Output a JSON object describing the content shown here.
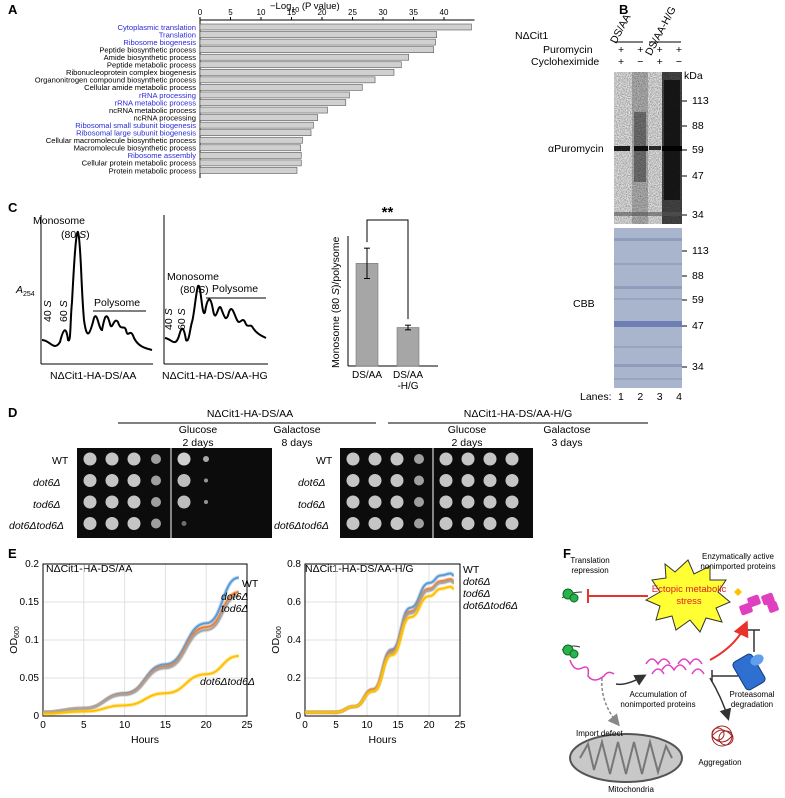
{
  "panels": {
    "A": "A",
    "B": "B",
    "C": "C",
    "D": "D",
    "E": "E",
    "F": "F"
  },
  "panelA": {
    "xlabel": "−Log",
    "xlabel_sub": "10",
    "xlabel_tail": " (P value)",
    "ticks": [
      "0",
      "5",
      "10",
      "15",
      "20",
      "25",
      "30",
      "35",
      "40"
    ],
    "colors": {
      "blue": "#2b2bd6",
      "black": "#000000",
      "bar": "#d0d0d0"
    },
    "terms": [
      {
        "name": "Cytoplasmic translation",
        "value": 44.5,
        "blue": true
      },
      {
        "name": "Translation",
        "value": 38.8,
        "blue": true
      },
      {
        "name": "Ribosome biogenesis",
        "value": 38.6,
        "blue": true
      },
      {
        "name": "Peptide biosynthetic process",
        "value": 38.3,
        "blue": false
      },
      {
        "name": "Amide biosynthetic process",
        "value": 34.2,
        "blue": false
      },
      {
        "name": "Peptide metabolic process",
        "value": 33.0,
        "blue": false
      },
      {
        "name": "Ribonucleoprotein complex biogenesis",
        "value": 31.8,
        "blue": false
      },
      {
        "name": "Organonitrogen compound biosynthetic process",
        "value": 28.7,
        "blue": false
      },
      {
        "name": "Cellular amide metabolic process",
        "value": 26.6,
        "blue": false
      },
      {
        "name": "rRNA processing",
        "value": 24.5,
        "blue": true
      },
      {
        "name": "rRNA metabolic process",
        "value": 23.9,
        "blue": true
      },
      {
        "name": "ncRNA metabolic process",
        "value": 20.9,
        "blue": false
      },
      {
        "name": "ncRNA processing",
        "value": 19.3,
        "blue": false
      },
      {
        "name": "Ribosomal small subunit biogenesis",
        "value": 18.6,
        "blue": true
      },
      {
        "name": "Ribosomal large subunit biogenesis",
        "value": 18.2,
        "blue": true
      },
      {
        "name": "Cellular macromolecule biosynthetic process",
        "value": 16.8,
        "blue": false
      },
      {
        "name": "Macromolecule biosynthetic process",
        "value": 16.5,
        "blue": false
      },
      {
        "name": "Ribosome assembly",
        "value": 16.6,
        "blue": true
      },
      {
        "name": "Cellular protein metabolic process",
        "value": 16.6,
        "blue": false
      },
      {
        "name": "Protein metabolic process",
        "value": 15.9,
        "blue": false
      }
    ]
  },
  "panelB": {
    "construct": "NΔCit1",
    "group1": "DS/AA",
    "group2": "DS/AA-H/G",
    "puromycin_label": "Puromycin",
    "cycloheximide_label": "Cycloheximide",
    "puromycin": [
      "+",
      "+",
      "+",
      "+"
    ],
    "cycloheximide": [
      "+",
      "−",
      "+",
      "−"
    ],
    "kda": "kDa",
    "top_markers": [
      "113",
      "88",
      "59",
      "47",
      "34"
    ],
    "bottom_markers": [
      "113",
      "88",
      "59",
      "47",
      "34"
    ],
    "antibody": "αPuromycin",
    "stain": "CBB",
    "lanes_label": "Lanes:",
    "lanes": [
      "1",
      "2",
      "3",
      "4"
    ]
  },
  "panelC": {
    "ylabel": "A",
    "ylabel_sub": "254",
    "monosome": "Monosome",
    "s80": "(80 ",
    "s_italic": "S",
    "s_close": ")",
    "s40": "40 ",
    "s60": "60 ",
    "polysome": "Polysome",
    "left_caption": "NΔCit1-HA-DS/AA",
    "right_caption": "NΔCit1-HA-DS/AA-HG",
    "bar_ylabel_a": "Monosome (80 ",
    "bar_ylabel_b": "S",
    "bar_ylabel_c": ")/polysome",
    "significance": "**",
    "chart_data": {
      "type": "bar",
      "categories": [
        "DS/AA",
        "DS/AA -H/G"
      ],
      "category_lines": [
        [
          "DS/AA"
        ],
        [
          "DS/AA",
          "-H/G"
        ]
      ],
      "values": [
        0.88,
        0.33
      ],
      "errors": [
        0.13,
        0.02
      ],
      "ylim": [
        0,
        1.2
      ],
      "ylabel": "Monosome (80 S)/polysome"
    }
  },
  "panelD": {
    "left_title": "NΔCit1-HA-DS/AA",
    "right_title": "NΔCit1-HA-DS/AA-H/G",
    "left_cond1": "Glucose",
    "left_cond1_time": "2 days",
    "left_cond2": "Galactose",
    "left_cond2_time": "8 days",
    "right_cond1": "Glucose",
    "right_cond1_time": "2 days",
    "right_cond2": "Galactose",
    "right_cond2_time": "3 days",
    "strains": [
      "WT",
      "dot6Δ",
      "tod6Δ",
      "dot6Δtod6Δ"
    ]
  },
  "panelE": {
    "chart_data": [
      {
        "type": "line",
        "title": "NΔCit1-HA-DS/AA",
        "xlabel": "Hours",
        "ylabel": "OD600",
        "xlim": [
          0,
          25
        ],
        "ylim": [
          0,
          0.2
        ],
        "xticks": [
          "0",
          "5",
          "10",
          "15",
          "20",
          "25"
        ],
        "yticks": [
          "0",
          "0.05",
          "0.1",
          "0.15",
          "0.2"
        ],
        "series": [
          {
            "name": "WT",
            "color": "#5b9bd5",
            "x": [
              0,
              5,
              10,
              15,
              20,
              24
            ],
            "values": [
              0.005,
              0.01,
              0.03,
              0.068,
              0.122,
              0.182
            ]
          },
          {
            "name": "dot6Δ",
            "color": "#ed7d31",
            "x": [
              0,
              5,
              10,
              15,
              20,
              24
            ],
            "values": [
              0.005,
              0.01,
              0.029,
              0.065,
              0.117,
              0.163
            ]
          },
          {
            "name": "tod6Δ",
            "color": "#a5a5a5",
            "x": [
              0,
              5,
              10,
              15,
              20,
              24
            ],
            "values": [
              0.005,
              0.01,
              0.028,
              0.063,
              0.113,
              0.158
            ]
          },
          {
            "name": "dot6Δtod6Δ",
            "color": "#ffc000",
            "x": [
              0,
              5,
              10,
              15,
              20,
              24
            ],
            "values": [
              0.003,
              0.006,
              0.014,
              0.03,
              0.055,
              0.079
            ]
          }
        ]
      },
      {
        "type": "line",
        "title": "NΔCit1-HA-DS/AA-H/G",
        "xlabel": "Hours",
        "ylabel": "OD600",
        "xlim": [
          0,
          25
        ],
        "ylim": [
          0,
          0.8
        ],
        "xticks": [
          "0",
          "5",
          "10",
          "15",
          "20",
          "25"
        ],
        "yticks": [
          "0",
          "0.2",
          "0.4",
          "0.6",
          "0.8"
        ],
        "series": [
          {
            "name": "WT",
            "color": "#5b9bd5",
            "x": [
              0,
              5,
              8,
              11,
              14,
              17,
              20,
              22,
              23.5,
              24
            ],
            "values": [
              0.02,
              0.02,
              0.05,
              0.14,
              0.35,
              0.57,
              0.7,
              0.74,
              0.75,
              0.74
            ]
          },
          {
            "name": "dot6Δ",
            "color": "#ed7d31",
            "x": [
              0,
              5,
              8,
              11,
              14,
              17,
              20,
              22,
              23.5,
              24
            ],
            "values": [
              0.02,
              0.02,
              0.05,
              0.14,
              0.34,
              0.55,
              0.67,
              0.71,
              0.72,
              0.71
            ]
          },
          {
            "name": "tod6Δ",
            "color": "#a5a5a5",
            "x": [
              0,
              5,
              8,
              11,
              14,
              17,
              20,
              22,
              23.5,
              24
            ],
            "values": [
              0.02,
              0.02,
              0.05,
              0.13,
              0.33,
              0.54,
              0.66,
              0.7,
              0.71,
              0.7
            ]
          },
          {
            "name": "dot6Δtod6Δ",
            "color": "#ffc000",
            "x": [
              0,
              5,
              8,
              11,
              14,
              17,
              20,
              22,
              23.5,
              24
            ],
            "values": [
              0.02,
              0.02,
              0.05,
              0.13,
              0.32,
              0.52,
              0.63,
              0.67,
              0.68,
              0.67
            ]
          }
        ]
      }
    ],
    "left_labels": [
      "WT",
      "dot6Δ",
      "tod6Δ"
    ],
    "left_bottom_label": "dot6Δtod6Δ",
    "right_labels": [
      "WT",
      "dot6Δ",
      "tod6Δ",
      "dot6Δtod6Δ"
    ]
  },
  "panelF": {
    "translation": "Translation",
    "repression": "repression",
    "stress_a": "Ectopic metabolic",
    "stress_b": "stress",
    "enz_a": "Enzymatically active",
    "enz_b": "nonimported proteins",
    "accum_a": "Accumulation of",
    "accum_b": "nonimported proteins",
    "proteasomal_a": "Proteasomal",
    "proteasomal_b": "degradation",
    "import_defect": "Import defect",
    "aggregation": "Aggregation",
    "mitochondria": "Mitochondria",
    "colors": {
      "stress_fill": "#ffff33",
      "stress_text": "#e02020",
      "arrow_red": "#e8322a",
      "ribosome": "#2bb24c",
      "protein": "#e040c0",
      "proteasome": "#2f6fd0"
    }
  }
}
